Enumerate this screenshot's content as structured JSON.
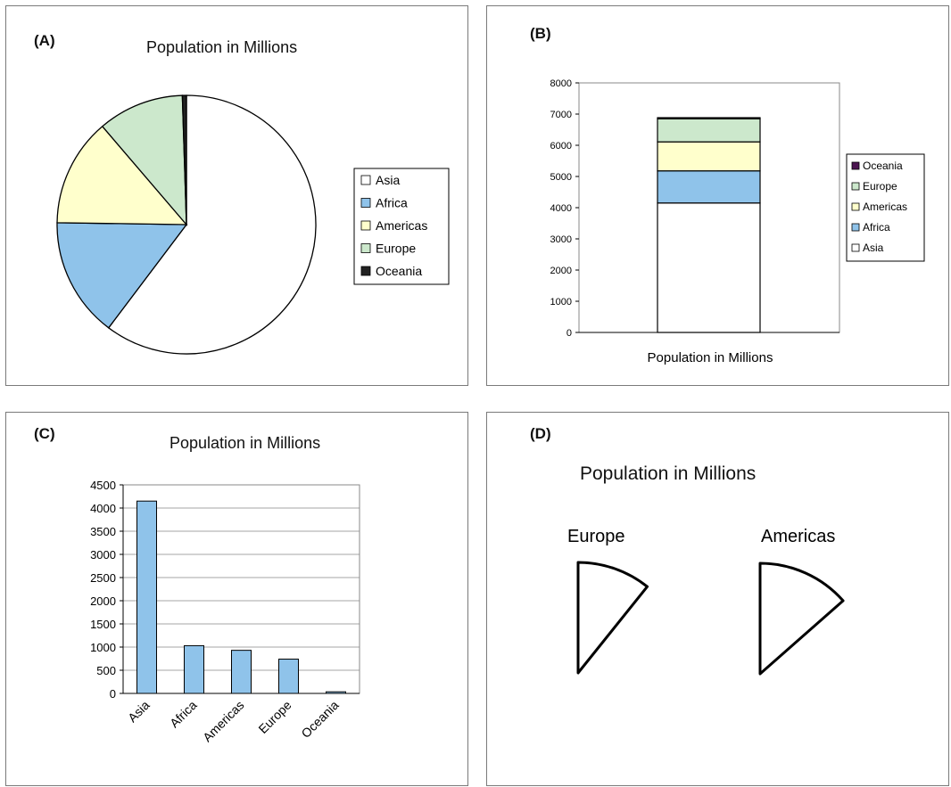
{
  "panels": {
    "a": {
      "label": "(A)"
    },
    "b": {
      "label": "(B)"
    },
    "c": {
      "label": "(C)"
    },
    "d": {
      "label": "(D)"
    }
  },
  "chart_data": [
    {
      "type": "pie",
      "title": "Population in Millions",
      "categories": [
        "Asia",
        "Africa",
        "Americas",
        "Europe",
        "Oceania"
      ],
      "values": [
        4150,
        1030,
        930,
        740,
        35
      ],
      "colors": [
        "#ffffff",
        "#8fc3ea",
        "#ffffcc",
        "#cce8cc",
        "#222222"
      ],
      "legend": "right"
    },
    {
      "type": "bar",
      "stacked": true,
      "xlabel": "Population in Millions",
      "categories": [
        "Population in Millions"
      ],
      "ylim": [
        0,
        8000
      ],
      "yticks": [
        0,
        1000,
        2000,
        3000,
        4000,
        5000,
        6000,
        7000,
        8000
      ],
      "series": [
        {
          "name": "Asia",
          "values": [
            4150
          ],
          "color": "#ffffff"
        },
        {
          "name": "Africa",
          "values": [
            1030
          ],
          "color": "#8fc3ea"
        },
        {
          "name": "Americas",
          "values": [
            930
          ],
          "color": "#ffffcc"
        },
        {
          "name": "Europe",
          "values": [
            740
          ],
          "color": "#cce8cc"
        },
        {
          "name": "Oceania",
          "values": [
            35
          ],
          "color": "#4b1450"
        }
      ],
      "legend_order": [
        "Oceania",
        "Europe",
        "Americas",
        "Africa",
        "Asia"
      ],
      "legend": "right"
    },
    {
      "type": "bar",
      "title": "Population in Millions",
      "categories": [
        "Asia",
        "Africa",
        "Americas",
        "Europe",
        "Oceania"
      ],
      "values": [
        4150,
        1030,
        930,
        740,
        35
      ],
      "ylim": [
        0,
        4500
      ],
      "yticks": [
        0,
        500,
        1000,
        1500,
        2000,
        2500,
        3000,
        3500,
        4000,
        4500
      ],
      "color": "#8fc3ea",
      "grid": true
    },
    {
      "type": "pie",
      "title": "Population in Millions",
      "categories": [
        "Europe",
        "Americas"
      ],
      "values": [
        740,
        930
      ],
      "total": 6885,
      "fill": "#ffffff"
    }
  ]
}
